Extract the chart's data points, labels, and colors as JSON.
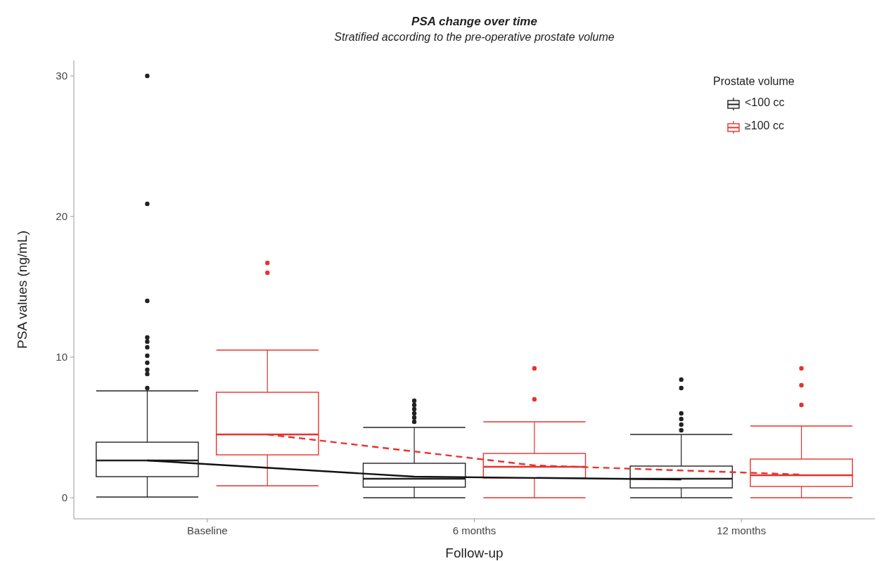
{
  "chart_data": {
    "type": "box",
    "title": "PSA change over time",
    "subtitle": "Stratified according to the pre-operative prostate volume",
    "xlabel": "Follow-up",
    "ylabel": "PSA values (ng/mL)",
    "legend_title": "Prostate volume",
    "legend": "top right",
    "categories": [
      "Baseline",
      "6 months",
      "12 months"
    ],
    "ylim": [
      -1.5,
      31.1
    ],
    "yticks": [
      0,
      10,
      20,
      30
    ],
    "grid": false,
    "series": [
      {
        "name": "<100 cc",
        "color": "#222222",
        "boxes": [
          {
            "low": 0.05,
            "q1": 1.5,
            "median": 2.65,
            "q3": 3.95,
            "high": 7.6,
            "outliers": [
              30,
              20.9,
              14,
              11.4,
              11.1,
              10.7,
              10.1,
              9.6,
              9.1,
              8.8,
              7.8
            ]
          },
          {
            "low": 0,
            "q1": 0.75,
            "median": 1.35,
            "q3": 2.45,
            "high": 5.0,
            "outliers": [
              5.4,
              5.7,
              6.0,
              6.3,
              6.6,
              6.9
            ]
          },
          {
            "low": 0,
            "q1": 0.7,
            "median": 1.35,
            "q3": 2.25,
            "high": 4.5,
            "outliers": [
              4.8,
              5.2,
              5.6,
              6.0,
              7.8,
              8.4
            ]
          }
        ]
      },
      {
        "name": "≥100 cc",
        "color": "#e8322d",
        "boxes": [
          {
            "low": 0.85,
            "q1": 3.05,
            "median": 4.5,
            "q3": 7.5,
            "high": 10.5,
            "outliers": [
              16.7,
              16.0
            ]
          },
          {
            "low": 0,
            "q1": 1.4,
            "median": 2.2,
            "q3": 3.15,
            "high": 5.4,
            "outliers": [
              9.2,
              7.0
            ]
          },
          {
            "low": 0,
            "q1": 0.8,
            "median": 1.6,
            "q3": 2.75,
            "high": 5.1,
            "outliers": [
              9.2,
              8.0,
              6.6
            ]
          }
        ]
      },
      {
        "type": "line",
        "color": "#111111",
        "line_style": "solid",
        "values": [
          2.65,
          1.5,
          1.3
        ]
      },
      {
        "type": "line",
        "color": "#e8322d",
        "line_style": "dashed",
        "values": [
          4.5,
          2.3,
          1.65
        ]
      }
    ]
  }
}
